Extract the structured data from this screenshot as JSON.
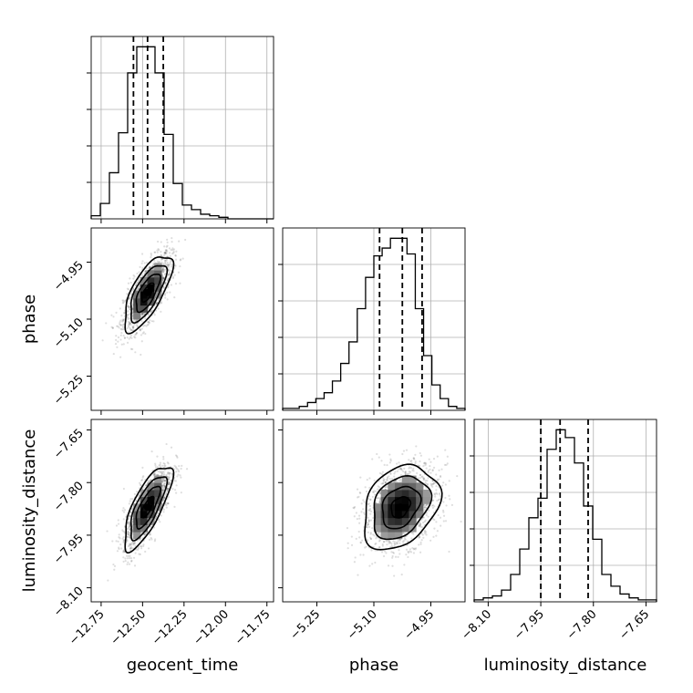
{
  "chart_data": {
    "type": "corner",
    "parameters": [
      {
        "name": "geocent_time",
        "label": "geocent_time",
        "range": [
          -12.81,
          -11.71
        ],
        "ticks": [
          -12.75,
          -12.5,
          -12.25,
          -12.0,
          -11.75
        ],
        "tick_labels": [
          "−12.75",
          "−12.50",
          "−12.25",
          "−12.00",
          "−11.75"
        ],
        "quantiles": [
          -12.555,
          -12.47,
          -12.375
        ],
        "histogram": [
          2,
          10,
          30,
          56,
          95,
          112,
          112,
          95,
          55,
          23,
          9,
          6,
          3,
          2,
          1,
          0,
          0,
          0,
          0,
          0
        ]
      },
      {
        "name": "phase",
        "label": "phase",
        "range": [
          -5.34,
          -4.86
        ],
        "ticks": [
          -5.25,
          -5.1,
          -4.95
        ],
        "tick_labels": [
          "−5.25",
          "−5.10",
          "−4.95"
        ],
        "quantiles": [
          -5.085,
          -5.025,
          -4.973
        ],
        "histogram": [
          1,
          1,
          2,
          4,
          6,
          9,
          15,
          24,
          35,
          52,
          68,
          79,
          83,
          88,
          88,
          80,
          52,
          28,
          13,
          6,
          2,
          1
        ]
      },
      {
        "name": "luminosity_distance",
        "label": "luminosity_distance",
        "range": [
          -8.14,
          -7.62
        ],
        "ticks": [
          -8.1,
          -7.95,
          -7.8,
          -7.65
        ],
        "tick_labels": [
          "−8.10",
          "−7.95",
          "−7.80",
          "−7.65"
        ],
        "quantiles": [
          -7.95,
          -7.895,
          -7.815
        ],
        "histogram": [
          1,
          2,
          3,
          6,
          14,
          27,
          43,
          53,
          78,
          88,
          84,
          71,
          49,
          32,
          14,
          8,
          4,
          2,
          1,
          1
        ]
      }
    ],
    "pairs": [
      {
        "x": "geocent_time",
        "y": "phase",
        "mean": [
          -12.47,
          -5.03
        ],
        "sd": [
          0.072,
          0.05
        ],
        "corr": 0.7
      },
      {
        "x": "geocent_time",
        "y": "luminosity_distance",
        "mean": [
          -12.47,
          -7.87
        ],
        "sd": [
          0.072,
          0.06
        ],
        "corr": 0.75
      },
      {
        "x": "phase",
        "y": "luminosity_distance",
        "mean": [
          -5.03,
          -7.87
        ],
        "sd": [
          0.05,
          0.06
        ],
        "corr": 0.3
      }
    ],
    "contour_levels": [
      0.5,
      1.0,
      1.5,
      2.0
    ],
    "grid": true
  }
}
